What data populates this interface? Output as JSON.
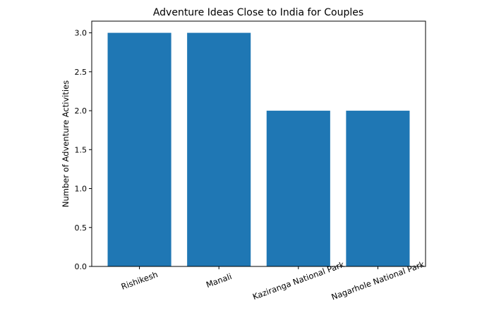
{
  "chart_data": {
    "type": "bar",
    "title": "Adventure Ideas Close to India for Couples",
    "xlabel": "",
    "ylabel": "Number of Adventure Activities",
    "categories": [
      "Rishikesh",
      "Manali",
      "Kaziranga National Park",
      "Nagarhole National Park"
    ],
    "values": [
      3,
      3,
      2,
      2
    ],
    "ylim": [
      0,
      3.15
    ],
    "yticks": [
      "0.0",
      "0.5",
      "1.0",
      "1.5",
      "2.0",
      "2.5",
      "3.0"
    ],
    "grid": false,
    "bar_color": "#1f77b4",
    "xtick_rotation": 20
  }
}
